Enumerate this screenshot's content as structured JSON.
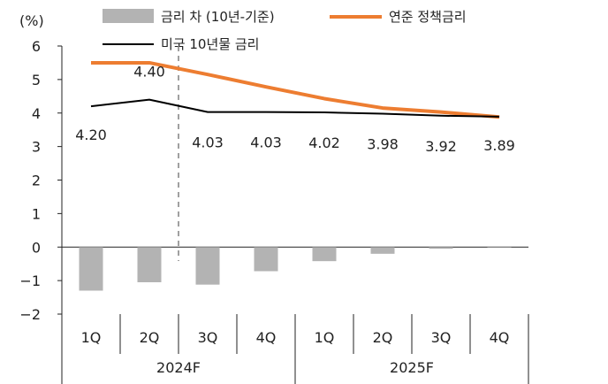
{
  "chart_data": {
    "type": "bar",
    "y_unit": "(%)",
    "yticks": [
      "6",
      "5",
      "4",
      "3",
      "2",
      "1",
      "0",
      "-1",
      "-2"
    ],
    "ylim": [
      -2,
      6
    ],
    "categories": [
      "1Q",
      "2Q",
      "3Q",
      "4Q",
      "1Q",
      "2Q",
      "3Q",
      "4Q"
    ],
    "groups": [
      {
        "label": "2024F",
        "span": [
          0,
          3
        ]
      },
      {
        "label": "2025F",
        "span": [
          4,
          7
        ]
      }
    ],
    "forecast_divider_after_index": 1.5,
    "series": [
      {
        "name": "금리 차 (10년-기준)",
        "type": "bar",
        "color": "#b3b3b3",
        "values": [
          -1.3,
          -1.05,
          -1.12,
          -0.72,
          -0.42,
          -0.2,
          -0.05,
          0.0
        ]
      },
      {
        "name": "연준 정책금리",
        "type": "line",
        "color": "#ed7d31",
        "values": [
          5.5,
          5.5,
          5.15,
          4.78,
          4.43,
          4.15,
          4.03,
          3.88
        ]
      },
      {
        "name": "미국 10년물 금리",
        "type": "line",
        "color": "#000000",
        "values": [
          4.2,
          4.4,
          4.03,
          4.03,
          4.02,
          3.98,
          3.92,
          3.89
        ]
      }
    ],
    "data_labels": [
      "4.20",
      "4.40",
      "4.03",
      "4.03",
      "4.02",
      "3.98",
      "3.92",
      "3.89"
    ],
    "legend": [
      {
        "label": "금리 차 (10년-기준)",
        "color": "#b3b3b3",
        "icon": "bar-swatch"
      },
      {
        "label": "연준 정책금리",
        "color": "#ed7d31",
        "icon": "thick-line"
      },
      {
        "label": "미국 10년물 금리",
        "color": "#000000",
        "icon": "thin-line"
      }
    ]
  }
}
